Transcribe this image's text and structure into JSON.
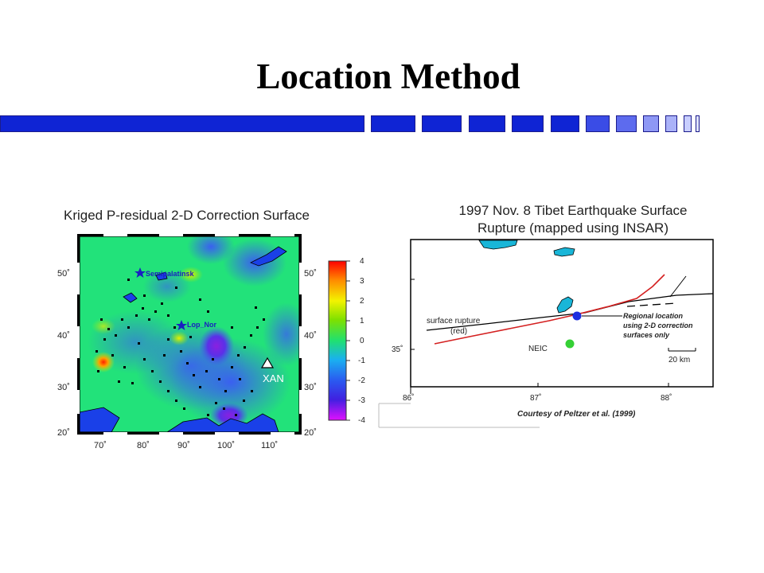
{
  "slide": {
    "title": "Location Method",
    "colors": {
      "bar": "#0f24d4",
      "bar_light": "#8e98f5",
      "bar_lighter": "#c8ceff"
    }
  },
  "map_left": {
    "title": "Kriged P-residual 2-D Correction Surface",
    "y_ticks": [
      "50˚",
      "40˚",
      "30˚",
      "20˚"
    ],
    "x_ticks": [
      "70˚",
      "80˚",
      "90˚",
      "100˚",
      "110˚"
    ],
    "labels": {
      "semipalatinsk": "Semipalatinsk",
      "lop_nor": "Lop_Nor",
      "xan": "XAN"
    },
    "colorbar_ticks": [
      "4",
      "3",
      "2",
      "1",
      "0",
      "-1",
      "-2",
      "-3",
      "-4"
    ]
  },
  "map_right": {
    "title_line1": "1997 Nov. 8 Tibet Earthquake Surface",
    "title_line2": "Rupture (mapped using INSAR)",
    "label_rupture_1": "surface rupture",
    "label_rupture_2": "(red)",
    "label_regional_1": "Regional location",
    "label_regional_2": "using 2-D correction",
    "label_regional_3": "surfaces only",
    "label_neic": "NEIC",
    "scale_label": "20 km",
    "y_tick": "35˚",
    "x_ticks": [
      "86˚",
      "87˚",
      "88˚"
    ],
    "credit": "Courtesy of Peltzer et al. (1999)",
    "colors": {
      "rupture": "#d42020",
      "regional": "#1e2ee0",
      "neic": "#35d035",
      "lake": "#19b6d8"
    }
  }
}
